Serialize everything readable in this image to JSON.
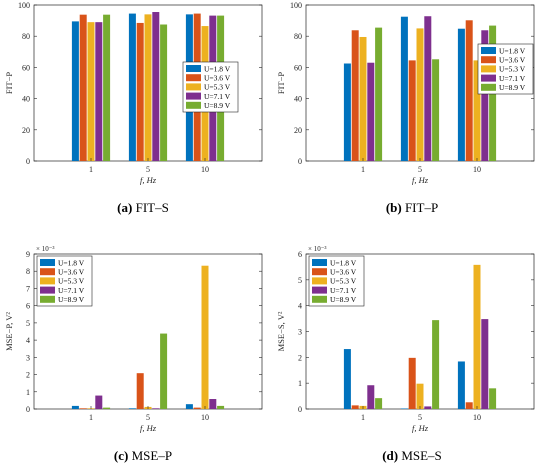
{
  "colors": [
    "#0072BD",
    "#D95319",
    "#EDB120",
    "#7E2F8E",
    "#77AC30"
  ],
  "chart_data": [
    {
      "type": "bar",
      "xlabel": "f, Hz",
      "ylabel": "FIT−P",
      "ylim": [
        0,
        100
      ],
      "yticks": [
        "0",
        "20",
        "40",
        "60",
        "80",
        "100"
      ],
      "scale_note": "",
      "categories": [
        "1",
        "5",
        "10"
      ],
      "legend_position": "middle-right",
      "series": [
        {
          "name": "U=1.8 V",
          "values": [
            89.5,
            94.5,
            94
          ]
        },
        {
          "name": "U=3.6 V",
          "values": [
            93.8,
            88.5,
            94.5
          ]
        },
        {
          "name": "U=5.3 V",
          "values": [
            89,
            94,
            86.5
          ]
        },
        {
          "name": "U=7.1 V",
          "values": [
            89,
            95.5,
            93.2
          ]
        },
        {
          "name": "U=8.9 V",
          "values": [
            93.8,
            87.5,
            93.2
          ]
        }
      ],
      "caption_letter": "(a)",
      "caption_text": "FIT–S"
    },
    {
      "type": "bar",
      "xlabel": "f, Hz",
      "ylabel": "FIT−P",
      "ylim": [
        0,
        100
      ],
      "yticks": [
        "0",
        "20",
        "40",
        "60",
        "80",
        "100"
      ],
      "scale_note": "",
      "categories": [
        "1",
        "5",
        "10"
      ],
      "legend_position": "top-right",
      "series": [
        {
          "name": "U=1.8 V",
          "values": [
            62.5,
            92.5,
            84.8
          ]
        },
        {
          "name": "U=3.6 V",
          "values": [
            83.8,
            64.5,
            90.2
          ]
        },
        {
          "name": "U=5.3 V",
          "values": [
            79.5,
            85,
            64.5
          ]
        },
        {
          "name": "U=7.1 V",
          "values": [
            63,
            92.8,
            83.8
          ]
        },
        {
          "name": "U=8.9 V",
          "values": [
            85.5,
            65.2,
            86.8
          ]
        }
      ],
      "caption_letter": "(b)",
      "caption_text": "FIT–P"
    },
    {
      "type": "bar",
      "xlabel": "f, Hz",
      "ylabel": "MSE−P, V²",
      "ylim": [
        0,
        9
      ],
      "yticks": [
        "0",
        "1",
        "2",
        "3",
        "4",
        "5",
        "6",
        "7",
        "8",
        "9"
      ],
      "scale_note": "× 10⁻³",
      "categories": [
        "1",
        "5",
        "10"
      ],
      "legend_position": "top-left",
      "series": [
        {
          "name": "U=1.8 V",
          "values": [
            0.18,
            0.04,
            0.28
          ]
        },
        {
          "name": "U=3.6 V",
          "values": [
            0.04,
            2.08,
            0.08
          ]
        },
        {
          "name": "U=5.3 V",
          "values": [
            0.04,
            0.12,
            8.32
          ]
        },
        {
          "name": "U=7.1 V",
          "values": [
            0.78,
            0.04,
            0.58
          ]
        },
        {
          "name": "U=8.9 V",
          "values": [
            0.08,
            4.38,
            0.18
          ]
        }
      ],
      "caption_letter": "(c)",
      "caption_text": "MSE–P"
    },
    {
      "type": "bar",
      "xlabel": "f, Hz",
      "ylabel": "MSE−S, V²",
      "ylim": [
        0,
        6
      ],
      "yticks": [
        "0",
        "1",
        "2",
        "3",
        "4",
        "5",
        "6"
      ],
      "scale_note": "× 10⁻³",
      "categories": [
        "1",
        "5",
        "10"
      ],
      "legend_position": "top-left",
      "series": [
        {
          "name": "U=1.8 V",
          "values": [
            2.32,
            0.02,
            1.84
          ]
        },
        {
          "name": "U=3.6 V",
          "values": [
            0.14,
            1.98,
            0.26
          ]
        },
        {
          "name": "U=5.3 V",
          "values": [
            0.12,
            0.98,
            5.58
          ]
        },
        {
          "name": "U=7.1 V",
          "values": [
            0.92,
            0.1,
            3.48
          ]
        },
        {
          "name": "U=8.9 V",
          "values": [
            0.42,
            3.44,
            0.8
          ]
        }
      ],
      "caption_letter": "(d)",
      "caption_text": "MSE–S"
    }
  ]
}
